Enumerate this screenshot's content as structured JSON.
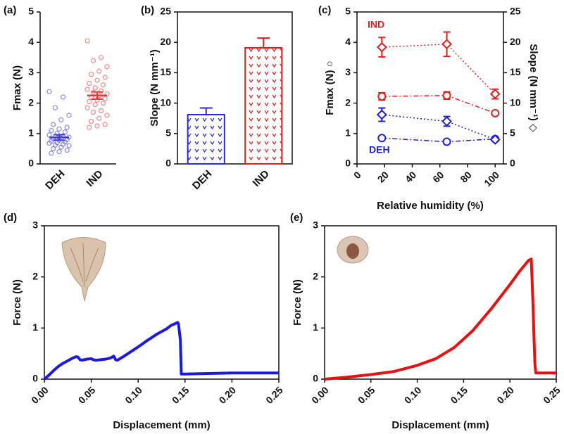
{
  "chart_data": [
    {
      "type": "strip",
      "panel_label": "(a)",
      "y_label": "Fmax (N)",
      "categories": [
        "DEH",
        "IND"
      ],
      "series": [
        {
          "color": "#3b3bd6",
          "values": [
            2.38,
            2.2,
            1.85,
            1.6,
            1.45,
            1.3,
            1.2,
            1.15,
            1.1,
            1.05,
            1.0,
            0.95,
            0.92,
            0.9,
            0.88,
            0.85,
            0.82,
            0.8,
            0.78,
            0.75,
            0.72,
            0.7,
            0.68,
            0.65,
            0.62,
            0.6,
            0.55,
            0.5,
            0.45,
            0.4,
            0.35
          ],
          "mean": 0.87,
          "error": 0.09
        },
        {
          "color": "#e23a3a",
          "values": [
            4.05,
            3.5,
            3.4,
            3.2,
            3.05,
            2.95,
            2.85,
            2.75,
            2.65,
            2.6,
            2.5,
            2.45,
            2.4,
            2.35,
            2.3,
            2.25,
            2.2,
            2.15,
            2.1,
            2.05,
            2.0,
            1.95,
            1.85,
            1.75,
            1.7,
            1.6,
            1.5,
            1.4,
            1.3,
            1.25,
            1.2
          ],
          "mean": 2.25,
          "error": 0.12
        }
      ],
      "ylim": [
        0,
        5
      ],
      "yticks": [
        0,
        1,
        2,
        3,
        4,
        5
      ],
      "frame": false
    },
    {
      "type": "bar",
      "panel_label": "(b)",
      "y_label": "Slope (N mm⁻¹)",
      "categories": [
        "DEH",
        "IND"
      ],
      "values": [
        8.1,
        19.1
      ],
      "errors": [
        1.1,
        1.6
      ],
      "colors": [
        "#2a2ad8",
        "#e02020"
      ],
      "ylim": [
        0,
        25
      ],
      "yticks": [
        0,
        5,
        10,
        15,
        20,
        25
      ],
      "frame": true
    },
    {
      "type": "line",
      "panel_label": "(c)",
      "y_label": "Fmax (N) ○",
      "y2_label": "Slope (N mm⁻¹) ◇",
      "x_label": "Relative humidity (%)",
      "x": [
        18,
        65,
        100
      ],
      "series": [
        {
          "color": "#e02020",
          "values": [
            2.22,
            2.25,
            1.67
          ],
          "errors": [
            0.12,
            0.12,
            0.05
          ],
          "marker": "circle",
          "dash": "dashdot"
        },
        {
          "color": "#e02020",
          "values": [
            19.2,
            19.7,
            11.5
          ],
          "errors": [
            1.6,
            2.0,
            0.8
          ],
          "marker": "diamond",
          "dash": "dot",
          "axis": "y2"
        },
        {
          "color": "#2020d0",
          "values": [
            0.85,
            0.73,
            0.82
          ],
          "errors": [
            0.05,
            0.05,
            0.04
          ],
          "marker": "circle",
          "dash": "dashdot"
        },
        {
          "color": "#2020d0",
          "values": [
            8.1,
            7.0,
            4.0
          ],
          "errors": [
            1.1,
            0.8,
            0.3
          ],
          "marker": "diamond",
          "dash": "dot",
          "axis": "y2"
        }
      ],
      "annotations": [
        {
          "text": "IND",
          "color": "#e02020"
        },
        {
          "text": "DEH",
          "color": "#2020d0"
        }
      ],
      "xlim": [
        0,
        106
      ],
      "xticks": [
        0,
        20,
        40,
        60,
        80,
        100
      ],
      "ylim": [
        0,
        5
      ],
      "yticks": [
        0,
        1,
        2,
        3,
        4,
        5
      ],
      "y2lim": [
        0,
        25
      ],
      "y2ticks": [
        0,
        5,
        10,
        15,
        20,
        25
      ],
      "frame": true,
      "line_width": 1.5
    },
    {
      "type": "line",
      "panel_label": "(d)",
      "y_label": "Force (N)",
      "x_label": "Displacement (mm)",
      "x": [
        0,
        0.005,
        0.01,
        0.015,
        0.02,
        0.025,
        0.03,
        0.034,
        0.036,
        0.038,
        0.04,
        0.045,
        0.05,
        0.052,
        0.055,
        0.06,
        0.065,
        0.07,
        0.074,
        0.076,
        0.078,
        0.085,
        0.09,
        0.1,
        0.11,
        0.12,
        0.13,
        0.135,
        0.14,
        0.142,
        0.143,
        0.145,
        0.146,
        0.15,
        0.175,
        0.2,
        0.225,
        0.25
      ],
      "series": [
        {
          "color": "#1a1ae0",
          "values": [
            0,
            0.08,
            0.17,
            0.25,
            0.31,
            0.36,
            0.41,
            0.44,
            0.43,
            0.38,
            0.37,
            0.39,
            0.4,
            0.38,
            0.37,
            0.38,
            0.39,
            0.41,
            0.45,
            0.38,
            0.37,
            0.45,
            0.51,
            0.63,
            0.76,
            0.88,
            0.98,
            1.05,
            1.09,
            1.11,
            1.08,
            0.77,
            0.1,
            0.1,
            0.11,
            0.12,
            0.12,
            0.12
          ]
        }
      ],
      "xlim": [
        0,
        0.25
      ],
      "xticks": [
        {
          "value": 0,
          "label": "0.00"
        },
        0.05,
        {
          "value": 0.1,
          "label": "0.10"
        },
        0.15,
        {
          "value": 0.2,
          "label": "0.20"
        },
        0.25
      ],
      "ylim": [
        0,
        3
      ],
      "yticks": [
        0,
        1,
        2,
        3
      ],
      "frame": true,
      "line_width": 4
    },
    {
      "type": "line",
      "panel_label": "(e)",
      "y_label": "Force (N)",
      "x_label": "Displacement (mm)",
      "x": [
        0,
        0.025,
        0.05,
        0.075,
        0.1,
        0.12,
        0.14,
        0.16,
        0.18,
        0.2,
        0.21,
        0.22,
        0.223,
        0.224,
        0.225,
        0.226,
        0.227,
        0.228,
        0.24,
        0.25
      ],
      "series": [
        {
          "color": "#e81010",
          "values": [
            0,
            0.04,
            0.09,
            0.15,
            0.27,
            0.4,
            0.62,
            0.95,
            1.38,
            1.85,
            2.1,
            2.32,
            2.35,
            1.9,
            1.4,
            0.8,
            0.28,
            0.12,
            0.12,
            0.12
          ]
        }
      ],
      "xlim": [
        0,
        0.25
      ],
      "xticks": [
        {
          "value": 0,
          "label": "0.00"
        },
        0.05,
        {
          "value": 0.1,
          "label": "0.10"
        },
        0.15,
        {
          "value": 0.2,
          "label": "0.20"
        },
        0.25
      ],
      "ylim": [
        0,
        3
      ],
      "yticks": [
        0,
        1,
        2,
        3
      ],
      "frame": true,
      "line_width": 4
    }
  ]
}
